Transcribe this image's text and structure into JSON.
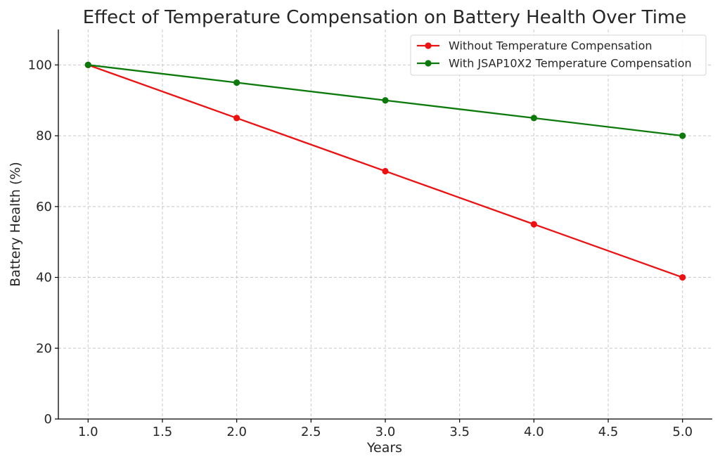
{
  "chart_data": {
    "type": "line",
    "title": "Effect of Temperature Compensation on Battery Health Over Time",
    "xlabel": "Years",
    "ylabel": "Battery Health (%)",
    "x": [
      1,
      2,
      3,
      4,
      5
    ],
    "xlim": [
      0.8,
      5.2
    ],
    "ylim": [
      0,
      110
    ],
    "xticks": [
      1.0,
      1.5,
      2.0,
      2.5,
      3.0,
      3.5,
      4.0,
      4.5,
      5.0
    ],
    "xtick_labels": [
      "1.0",
      "1.5",
      "2.0",
      "2.5",
      "3.0",
      "3.5",
      "4.0",
      "4.5",
      "5.0"
    ],
    "yticks": [
      0,
      20,
      40,
      60,
      80,
      100
    ],
    "ytick_labels": [
      "0",
      "20",
      "40",
      "60",
      "80",
      "100"
    ],
    "grid": true,
    "legend_position": "top-right",
    "series": [
      {
        "name": "Without Temperature Compensation",
        "values": [
          100,
          85,
          70,
          55,
          40
        ],
        "color": "#ee1111",
        "marker": "circle"
      },
      {
        "name": "With JSAP10X2 Temperature Compensation",
        "values": [
          100,
          95,
          90,
          85,
          80
        ],
        "color": "#0b7a0b",
        "marker": "circle"
      }
    ]
  }
}
